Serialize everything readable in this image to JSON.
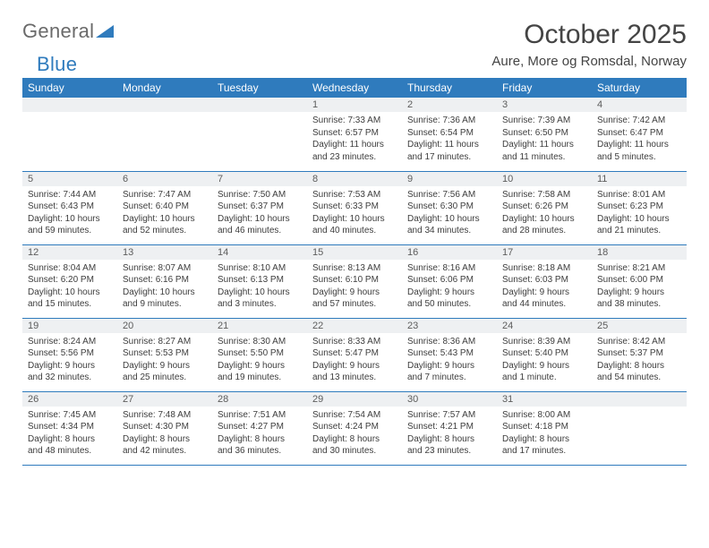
{
  "logo": {
    "part1": "General",
    "part2": "Blue"
  },
  "title": "October 2025",
  "location": "Aure, More og Romsdal, Norway",
  "colors": {
    "header_bg": "#2f7bbd",
    "header_text": "#ffffff",
    "daynum_bg": "#eef0f2",
    "text": "#3d3d3d",
    "title_text": "#444444",
    "logo_gray": "#6a6a6a",
    "logo_blue": "#2f7bbd",
    "row_border": "#2f7bbd",
    "page_bg": "#ffffff"
  },
  "weekdays": [
    "Sunday",
    "Monday",
    "Tuesday",
    "Wednesday",
    "Thursday",
    "Friday",
    "Saturday"
  ],
  "weeks": [
    [
      null,
      null,
      null,
      {
        "n": "1",
        "sr": "Sunrise: 7:33 AM",
        "ss": "Sunset: 6:57 PM",
        "dl": "Daylight: 11 hours and 23 minutes."
      },
      {
        "n": "2",
        "sr": "Sunrise: 7:36 AM",
        "ss": "Sunset: 6:54 PM",
        "dl": "Daylight: 11 hours and 17 minutes."
      },
      {
        "n": "3",
        "sr": "Sunrise: 7:39 AM",
        "ss": "Sunset: 6:50 PM",
        "dl": "Daylight: 11 hours and 11 minutes."
      },
      {
        "n": "4",
        "sr": "Sunrise: 7:42 AM",
        "ss": "Sunset: 6:47 PM",
        "dl": "Daylight: 11 hours and 5 minutes."
      }
    ],
    [
      {
        "n": "5",
        "sr": "Sunrise: 7:44 AM",
        "ss": "Sunset: 6:43 PM",
        "dl": "Daylight: 10 hours and 59 minutes."
      },
      {
        "n": "6",
        "sr": "Sunrise: 7:47 AM",
        "ss": "Sunset: 6:40 PM",
        "dl": "Daylight: 10 hours and 52 minutes."
      },
      {
        "n": "7",
        "sr": "Sunrise: 7:50 AM",
        "ss": "Sunset: 6:37 PM",
        "dl": "Daylight: 10 hours and 46 minutes."
      },
      {
        "n": "8",
        "sr": "Sunrise: 7:53 AM",
        "ss": "Sunset: 6:33 PM",
        "dl": "Daylight: 10 hours and 40 minutes."
      },
      {
        "n": "9",
        "sr": "Sunrise: 7:56 AM",
        "ss": "Sunset: 6:30 PM",
        "dl": "Daylight: 10 hours and 34 minutes."
      },
      {
        "n": "10",
        "sr": "Sunrise: 7:58 AM",
        "ss": "Sunset: 6:26 PM",
        "dl": "Daylight: 10 hours and 28 minutes."
      },
      {
        "n": "11",
        "sr": "Sunrise: 8:01 AM",
        "ss": "Sunset: 6:23 PM",
        "dl": "Daylight: 10 hours and 21 minutes."
      }
    ],
    [
      {
        "n": "12",
        "sr": "Sunrise: 8:04 AM",
        "ss": "Sunset: 6:20 PM",
        "dl": "Daylight: 10 hours and 15 minutes."
      },
      {
        "n": "13",
        "sr": "Sunrise: 8:07 AM",
        "ss": "Sunset: 6:16 PM",
        "dl": "Daylight: 10 hours and 9 minutes."
      },
      {
        "n": "14",
        "sr": "Sunrise: 8:10 AM",
        "ss": "Sunset: 6:13 PM",
        "dl": "Daylight: 10 hours and 3 minutes."
      },
      {
        "n": "15",
        "sr": "Sunrise: 8:13 AM",
        "ss": "Sunset: 6:10 PM",
        "dl": "Daylight: 9 hours and 57 minutes."
      },
      {
        "n": "16",
        "sr": "Sunrise: 8:16 AM",
        "ss": "Sunset: 6:06 PM",
        "dl": "Daylight: 9 hours and 50 minutes."
      },
      {
        "n": "17",
        "sr": "Sunrise: 8:18 AM",
        "ss": "Sunset: 6:03 PM",
        "dl": "Daylight: 9 hours and 44 minutes."
      },
      {
        "n": "18",
        "sr": "Sunrise: 8:21 AM",
        "ss": "Sunset: 6:00 PM",
        "dl": "Daylight: 9 hours and 38 minutes."
      }
    ],
    [
      {
        "n": "19",
        "sr": "Sunrise: 8:24 AM",
        "ss": "Sunset: 5:56 PM",
        "dl": "Daylight: 9 hours and 32 minutes."
      },
      {
        "n": "20",
        "sr": "Sunrise: 8:27 AM",
        "ss": "Sunset: 5:53 PM",
        "dl": "Daylight: 9 hours and 25 minutes."
      },
      {
        "n": "21",
        "sr": "Sunrise: 8:30 AM",
        "ss": "Sunset: 5:50 PM",
        "dl": "Daylight: 9 hours and 19 minutes."
      },
      {
        "n": "22",
        "sr": "Sunrise: 8:33 AM",
        "ss": "Sunset: 5:47 PM",
        "dl": "Daylight: 9 hours and 13 minutes."
      },
      {
        "n": "23",
        "sr": "Sunrise: 8:36 AM",
        "ss": "Sunset: 5:43 PM",
        "dl": "Daylight: 9 hours and 7 minutes."
      },
      {
        "n": "24",
        "sr": "Sunrise: 8:39 AM",
        "ss": "Sunset: 5:40 PM",
        "dl": "Daylight: 9 hours and 1 minute."
      },
      {
        "n": "25",
        "sr": "Sunrise: 8:42 AM",
        "ss": "Sunset: 5:37 PM",
        "dl": "Daylight: 8 hours and 54 minutes."
      }
    ],
    [
      {
        "n": "26",
        "sr": "Sunrise: 7:45 AM",
        "ss": "Sunset: 4:34 PM",
        "dl": "Daylight: 8 hours and 48 minutes."
      },
      {
        "n": "27",
        "sr": "Sunrise: 7:48 AM",
        "ss": "Sunset: 4:30 PM",
        "dl": "Daylight: 8 hours and 42 minutes."
      },
      {
        "n": "28",
        "sr": "Sunrise: 7:51 AM",
        "ss": "Sunset: 4:27 PM",
        "dl": "Daylight: 8 hours and 36 minutes."
      },
      {
        "n": "29",
        "sr": "Sunrise: 7:54 AM",
        "ss": "Sunset: 4:24 PM",
        "dl": "Daylight: 8 hours and 30 minutes."
      },
      {
        "n": "30",
        "sr": "Sunrise: 7:57 AM",
        "ss": "Sunset: 4:21 PM",
        "dl": "Daylight: 8 hours and 23 minutes."
      },
      {
        "n": "31",
        "sr": "Sunrise: 8:00 AM",
        "ss": "Sunset: 4:18 PM",
        "dl": "Daylight: 8 hours and 17 minutes."
      },
      null
    ]
  ]
}
